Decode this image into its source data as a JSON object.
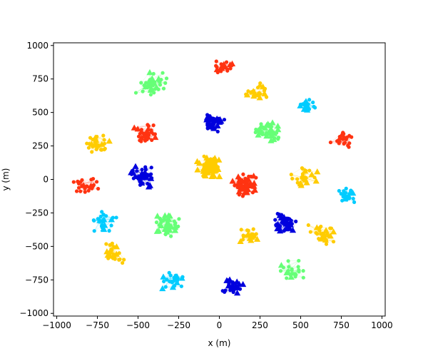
{
  "chart_data": {
    "type": "scatter",
    "title": "",
    "xlabel": "x (m)",
    "ylabel": "y (m)",
    "xlim": [
      -1020,
      1020
    ],
    "ylim": [
      -1020,
      1020
    ],
    "xticks": [
      -1000,
      -750,
      -500,
      -250,
      0,
      250,
      500,
      750,
      1000
    ],
    "yticks": [
      -1000,
      -750,
      -500,
      -250,
      0,
      250,
      500,
      750,
      1000
    ],
    "grid": false,
    "legend": "none",
    "markers": {
      "node": "circle",
      "cluster_head": "triangle"
    },
    "colors": {
      "red": "#ff3311",
      "blue": "#0000dd",
      "green": "#66ff77",
      "yellow": "#ffcc00",
      "cyan": "#00ccff"
    },
    "clusters": [
      {
        "color": "yellow",
        "center": [
          -60,
          90
        ],
        "spread": 110,
        "nodes": 30,
        "heads": 38
      },
      {
        "color": "red",
        "center": [
          150,
          -30
        ],
        "spread": 100,
        "nodes": 30,
        "heads": 32
      },
      {
        "color": "blue",
        "center": [
          -40,
          430
        ],
        "spread": 90,
        "nodes": 30,
        "heads": 14
      },
      {
        "color": "green",
        "center": [
          300,
          360
        ],
        "spread": 110,
        "nodes": 20,
        "heads": 22
      },
      {
        "color": "blue",
        "center": [
          -470,
          20
        ],
        "spread": 100,
        "nodes": 30,
        "heads": 14
      },
      {
        "color": "green",
        "center": [
          -330,
          -350
        ],
        "spread": 120,
        "nodes": 22,
        "heads": 20
      },
      {
        "color": "blue",
        "center": [
          400,
          -330
        ],
        "spread": 100,
        "nodes": 30,
        "heads": 20
      },
      {
        "color": "red",
        "center": [
          -440,
          330
        ],
        "spread": 110,
        "nodes": 24,
        "heads": 8
      },
      {
        "color": "green",
        "center": [
          -410,
          700
        ],
        "spread": 130,
        "nodes": 28,
        "heads": 8
      },
      {
        "color": "red",
        "center": [
          30,
          840
        ],
        "spread": 80,
        "nodes": 16,
        "heads": 6
      },
      {
        "color": "yellow",
        "center": [
          230,
          660
        ],
        "spread": 90,
        "nodes": 16,
        "heads": 8
      },
      {
        "color": "cyan",
        "center": [
          540,
          560
        ],
        "spread": 70,
        "nodes": 16,
        "heads": 6
      },
      {
        "color": "red",
        "center": [
          760,
          300
        ],
        "spread": 90,
        "nodes": 22,
        "heads": 4
      },
      {
        "color": "yellow",
        "center": [
          520,
          20
        ],
        "spread": 110,
        "nodes": 20,
        "heads": 10
      },
      {
        "color": "cyan",
        "center": [
          790,
          -120
        ],
        "spread": 90,
        "nodes": 18,
        "heads": 4
      },
      {
        "color": "yellow",
        "center": [
          640,
          -410
        ],
        "spread": 110,
        "nodes": 20,
        "heads": 8
      },
      {
        "color": "green",
        "center": [
          450,
          -690
        ],
        "spread": 110,
        "nodes": 20,
        "heads": 4
      },
      {
        "color": "blue",
        "center": [
          80,
          -800
        ],
        "spread": 90,
        "nodes": 22,
        "heads": 10
      },
      {
        "color": "cyan",
        "center": [
          -280,
          -750
        ],
        "spread": 100,
        "nodes": 18,
        "heads": 6
      },
      {
        "color": "yellow",
        "center": [
          -650,
          -560
        ],
        "spread": 110,
        "nodes": 22,
        "heads": 8
      },
      {
        "color": "cyan",
        "center": [
          -720,
          -320
        ],
        "spread": 110,
        "nodes": 22,
        "heads": 6
      },
      {
        "color": "red",
        "center": [
          -830,
          -30
        ],
        "spread": 100,
        "nodes": 22,
        "heads": 2
      },
      {
        "color": "yellow",
        "center": [
          -760,
          280
        ],
        "spread": 110,
        "nodes": 22,
        "heads": 6
      },
      {
        "color": "yellow",
        "center": [
          190,
          -420
        ],
        "spread": 90,
        "nodes": 14,
        "heads": 8
      }
    ]
  }
}
